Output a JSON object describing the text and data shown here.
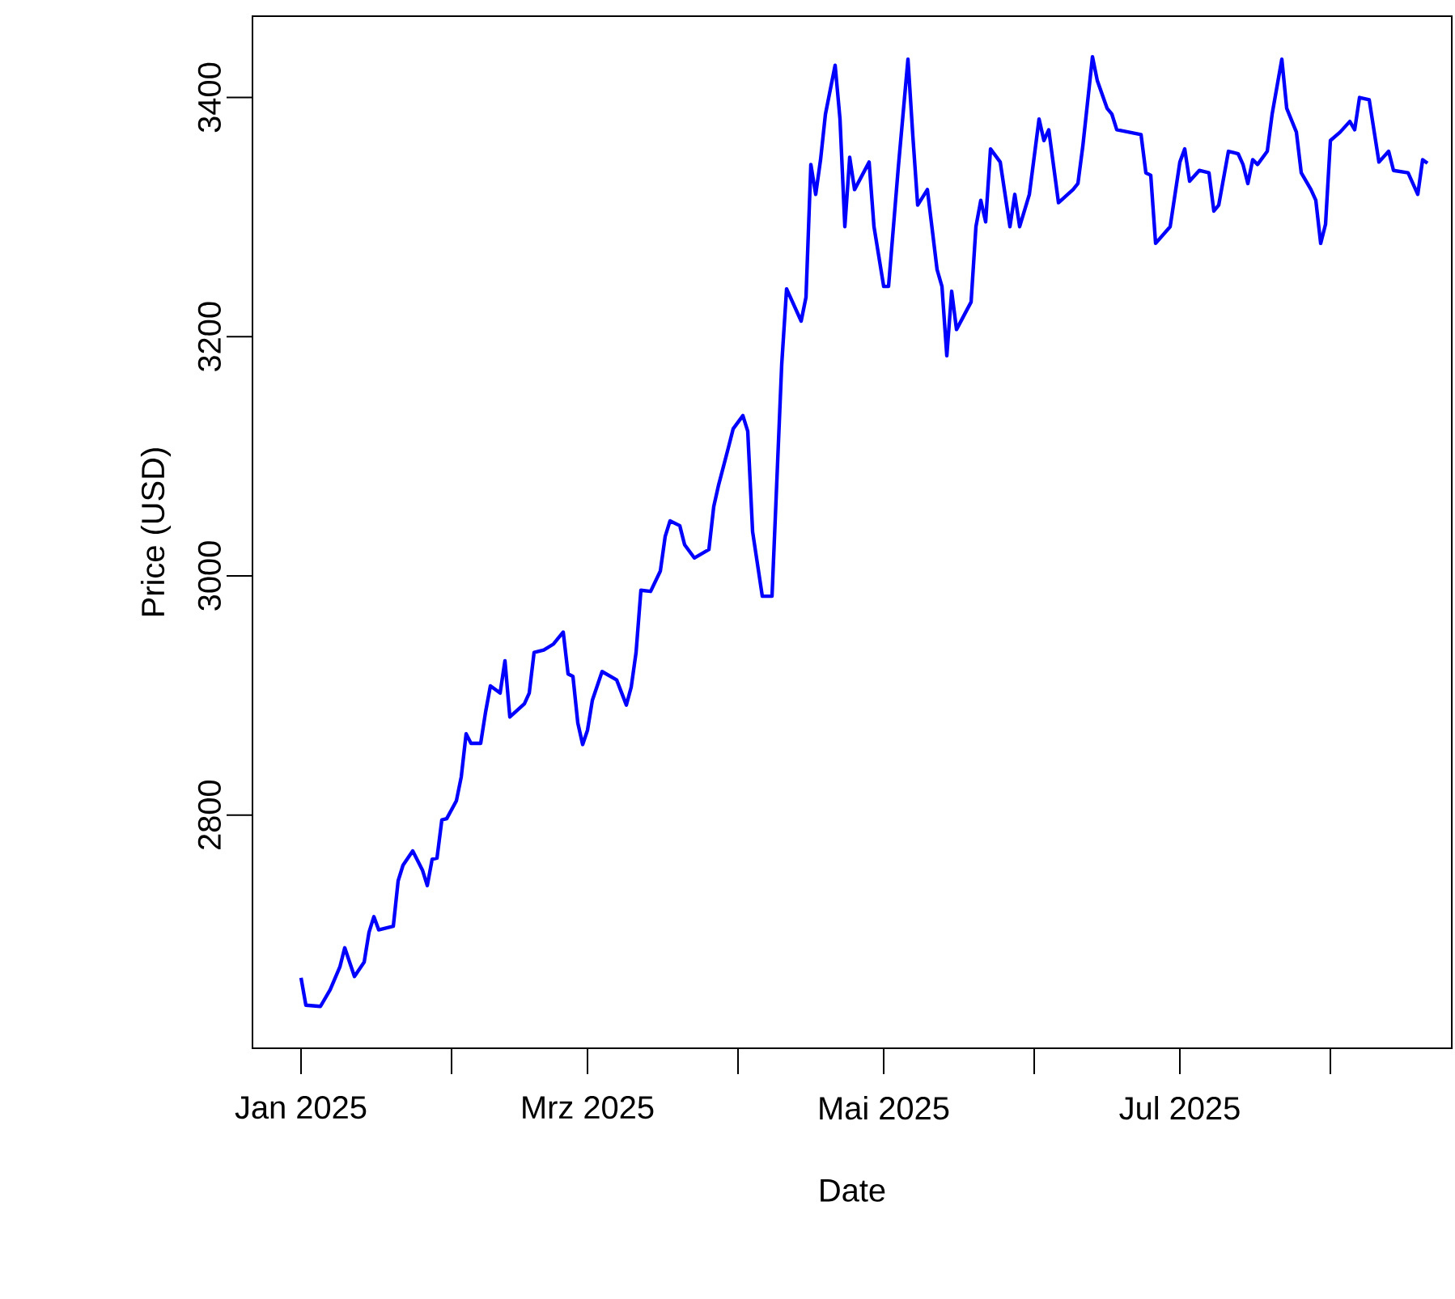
{
  "chart_data": {
    "type": "line",
    "xlabel": "Date",
    "ylabel": "Price (USD)",
    "xlim": [
      "2024-12-22",
      "2025-08-26"
    ],
    "ylim": [
      2605,
      3468
    ],
    "xticks": [
      {
        "value": "2025-01-01",
        "label": "Jan 2025"
      },
      {
        "value": "2025-02-01",
        "label": null
      },
      {
        "value": "2025-03-01",
        "label": "Mrz 2025"
      },
      {
        "value": "2025-04-01",
        "label": null
      },
      {
        "value": "2025-05-01",
        "label": "Mai 2025"
      },
      {
        "value": "2025-06-01",
        "label": null
      },
      {
        "value": "2025-07-01",
        "label": "Jul 2025"
      },
      {
        "value": "2025-08-01",
        "label": null
      }
    ],
    "yticks": [
      2800,
      3000,
      3200,
      3400
    ],
    "series": [
      {
        "color": "#0000ff",
        "x": [
          "2025-01-01",
          "2025-01-02",
          "2025-01-05",
          "2025-01-07",
          "2025-01-09",
          "2025-01-10",
          "2025-01-11",
          "2025-01-12",
          "2025-01-14",
          "2025-01-15",
          "2025-01-16",
          "2025-01-17",
          "2025-01-20",
          "2025-01-21",
          "2025-01-22",
          "2025-01-24",
          "2025-01-26",
          "2025-01-27",
          "2025-01-28",
          "2025-01-29",
          "2025-01-30",
          "2025-01-31",
          "2025-02-02",
          "2025-02-03",
          "2025-02-04",
          "2025-02-05",
          "2025-02-07",
          "2025-02-08",
          "2025-02-09",
          "2025-02-11",
          "2025-02-12",
          "2025-02-13",
          "2025-02-16",
          "2025-02-17",
          "2025-02-18",
          "2025-02-20",
          "2025-02-22",
          "2025-02-24",
          "2025-02-25",
          "2025-02-26",
          "2025-02-27",
          "2025-02-28",
          "2025-03-01",
          "2025-03-02",
          "2025-03-04",
          "2025-03-07",
          "2025-03-09",
          "2025-03-10",
          "2025-03-11",
          "2025-03-12",
          "2025-03-14",
          "2025-03-16",
          "2025-03-17",
          "2025-03-18",
          "2025-03-20",
          "2025-03-21",
          "2025-03-23",
          "2025-03-26",
          "2025-03-27",
          "2025-03-28",
          "2025-03-30",
          "2025-03-31",
          "2025-04-02",
          "2025-04-03",
          "2025-04-04",
          "2025-04-06",
          "2025-04-08",
          "2025-04-09",
          "2025-04-10",
          "2025-04-11",
          "2025-04-14",
          "2025-04-15",
          "2025-04-16",
          "2025-04-17",
          "2025-04-18",
          "2025-04-19",
          "2025-04-21",
          "2025-04-22",
          "2025-04-23",
          "2025-04-24",
          "2025-04-25",
          "2025-04-28",
          "2025-04-29",
          "2025-05-01",
          "2025-05-02",
          "2025-05-04",
          "2025-05-06",
          "2025-05-07",
          "2025-05-08",
          "2025-05-10",
          "2025-05-12",
          "2025-05-13",
          "2025-05-14",
          "2025-05-15",
          "2025-05-16",
          "2025-05-19",
          "2025-05-20",
          "2025-05-21",
          "2025-05-22",
          "2025-05-23",
          "2025-05-25",
          "2025-05-27",
          "2025-05-28",
          "2025-05-29",
          "2025-05-31",
          "2025-06-02",
          "2025-06-03",
          "2025-06-04",
          "2025-06-06",
          "2025-06-09",
          "2025-06-10",
          "2025-06-11",
          "2025-06-13",
          "2025-06-14",
          "2025-06-16",
          "2025-06-17",
          "2025-06-18",
          "2025-06-23",
          "2025-06-24",
          "2025-06-25",
          "2025-06-26",
          "2025-06-29",
          "2025-06-30",
          "2025-07-01",
          "2025-07-02",
          "2025-07-03",
          "2025-07-05",
          "2025-07-07",
          "2025-07-08",
          "2025-07-09",
          "2025-07-11",
          "2025-07-13",
          "2025-07-14",
          "2025-07-15",
          "2025-07-16",
          "2025-07-17",
          "2025-07-19",
          "2025-07-20",
          "2025-07-22",
          "2025-07-23",
          "2025-07-25",
          "2025-07-26",
          "2025-07-28",
          "2025-07-29",
          "2025-07-30",
          "2025-07-31",
          "2025-08-01",
          "2025-08-03",
          "2025-08-05",
          "2025-08-06",
          "2025-08-07",
          "2025-08-09",
          "2025-08-11",
          "2025-08-13",
          "2025-08-14",
          "2025-08-17",
          "2025-08-19",
          "2025-08-20",
          "2025-08-21"
        ],
        "values": [
          2664,
          2641,
          2640,
          2654,
          2673,
          2689,
          2677,
          2665,
          2677,
          2702,
          2715,
          2704,
          2707,
          2745,
          2758,
          2770,
          2754,
          2741,
          2763,
          2764,
          2796,
          2797,
          2812,
          2832,
          2868,
          2860,
          2860,
          2886,
          2908,
          2902,
          2929,
          2882,
          2893,
          2902,
          2936,
          2938,
          2943,
          2953,
          2918,
          2916,
          2877,
          2859,
          2871,
          2896,
          2920,
          2913,
          2892,
          2907,
          2936,
          2988,
          2987,
          3004,
          3033,
          3046,
          3042,
          3026,
          3015,
          3022,
          3058,
          3076,
          3107,
          3123,
          3134,
          3121,
          3037,
          2983,
          2983,
          3080,
          3177,
          3240,
          3213,
          3233,
          3344,
          3319,
          3348,
          3386,
          3427,
          3382,
          3292,
          3350,
          3323,
          3346,
          3292,
          3242,
          3242,
          3341,
          3432,
          3368,
          3310,
          3323,
          3256,
          3242,
          3184,
          3238,
          3206,
          3229,
          3292,
          3314,
          3296,
          3357,
          3346,
          3292,
          3319,
          3292,
          3319,
          3382,
          3364,
          3373,
          3312,
          3323,
          3328,
          3359,
          3434,
          3414,
          3391,
          3386,
          3373,
          3369,
          3337,
          3335,
          3278,
          3292,
          3319,
          3346,
          3357,
          3330,
          3339,
          3337,
          3305,
          3310,
          3355,
          3353,
          3344,
          3328,
          3348,
          3344,
          3355,
          3386,
          3432,
          3391,
          3371,
          3337,
          3323,
          3314,
          3278,
          3294,
          3364,
          3371,
          3380,
          3373,
          3400,
          3398,
          3346,
          3355,
          3339,
          3337,
          3319,
          3348,
          3345
        ]
      }
    ]
  }
}
